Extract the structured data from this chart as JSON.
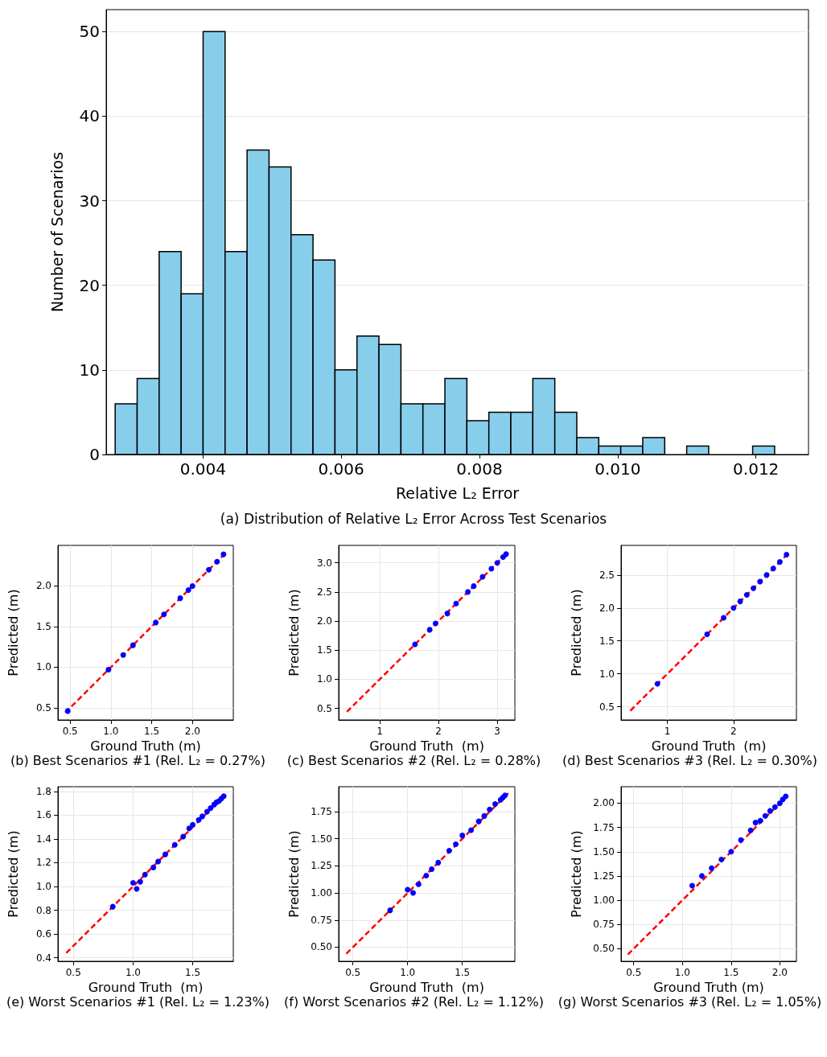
{
  "chart_data": [
    {
      "type": "histogram",
      "title": "(a) Distribution of Relative L₂ Error Across Test Scenarios",
      "xlabel": "Relative L₂ Error",
      "ylabel": "Number of Scenarios",
      "color": "#87ceeb",
      "bins": [
        0.00273,
        0.003048,
        0.003366,
        0.003684,
        0.004002,
        0.00432,
        0.004638,
        0.004956,
        0.005274,
        0.005592,
        0.00591,
        0.006228,
        0.006546,
        0.006864,
        0.007182,
        0.0075,
        0.007818,
        0.008136,
        0.008454,
        0.008772,
        0.00909,
        0.009408,
        0.009726,
        0.010044,
        0.010362,
        0.01068,
        0.010998,
        0.011316,
        0.011634,
        0.011952,
        0.01227
      ],
      "values": [
        6,
        9,
        24,
        19,
        50,
        24,
        36,
        34,
        26,
        23,
        10,
        14,
        13,
        6,
        6,
        9,
        4,
        5,
        5,
        9,
        5,
        2,
        1,
        1,
        2,
        0,
        1,
        0,
        0,
        1
      ],
      "xlim": [
        0.0026,
        0.01276
      ],
      "xticks": [
        0.004,
        0.006,
        0.008,
        {
          "value": 0.01,
          "label": "0.010"
        },
        0.012
      ],
      "ylim": [
        0,
        52.6
      ],
      "yticks": [
        0,
        10,
        20,
        30,
        40,
        50
      ],
      "grid": "y"
    },
    {
      "type": "scatter",
      "title": "(b) Best Scenarios #1 (Rel. L₂ = 0.27%)",
      "xlabel": "Ground Truth (m)",
      "ylabel": "Predicted (m)",
      "grid": true,
      "xlim": [
        0.35,
        2.5
      ],
      "xticks": [
        0.5,
        {
          "value": 1,
          "label": "1.0"
        },
        1.5,
        {
          "value": 2,
          "label": "2.0"
        }
      ],
      "ylim": [
        0.35,
        2.5
      ],
      "yticks": [
        0.5,
        {
          "value": 1,
          "label": "1.0"
        },
        1.5,
        {
          "value": 2,
          "label": "2.0"
        }
      ],
      "series": [
        {
          "type": "scatter",
          "color": "#0000ff",
          "marker": "circle",
          "x": [
            0.47,
            0.97,
            1.15,
            1.27,
            1.55,
            1.65,
            1.85,
            1.95,
            2.0,
            2.2,
            2.3,
            2.38
          ],
          "values": [
            0.46,
            0.97,
            1.15,
            1.27,
            1.55,
            1.65,
            1.85,
            1.95,
            2.0,
            2.2,
            2.3,
            2.39
          ]
        },
        {
          "type": "line",
          "color": "#ff0000",
          "marker": "none",
          "line_style": "dashed",
          "x": [
            0.44,
            2.39
          ],
          "values": [
            0.44,
            2.39
          ]
        }
      ]
    },
    {
      "type": "scatter",
      "title": "(c) Best Scenarios #2 (Rel. L₂ = 0.28%)",
      "xlabel": "Ground Truth  (m)",
      "ylabel": "Predicted (m)",
      "grid": true,
      "xlim": [
        0.3,
        3.3
      ],
      "xticks": [
        1,
        2,
        3
      ],
      "ylim": [
        0.3,
        3.3
      ],
      "yticks": [
        0.5,
        {
          "value": 1,
          "label": "1.0"
        },
        1.5,
        {
          "value": 2,
          "label": "2.0"
        },
        2.5,
        {
          "value": 3,
          "label": "3.0"
        }
      ],
      "series": [
        {
          "type": "scatter",
          "color": "#0000ff",
          "marker": "circle",
          "x": [
            1.6,
            1.85,
            1.95,
            2.15,
            2.3,
            2.5,
            2.6,
            2.75,
            2.9,
            3.0,
            3.1,
            3.15
          ],
          "values": [
            1.6,
            1.85,
            1.96,
            2.13,
            2.3,
            2.5,
            2.6,
            2.76,
            2.9,
            3.0,
            3.1,
            3.15
          ]
        },
        {
          "type": "line",
          "color": "#ff0000",
          "marker": "none",
          "line_style": "dashed",
          "x": [
            0.44,
            3.15
          ],
          "values": [
            0.44,
            3.15
          ]
        }
      ]
    },
    {
      "type": "scatter",
      "title": "(d) Best Scenarios #3 (Rel. L₂ = 0.30%)",
      "xlabel": "Ground Truth  (m)",
      "ylabel": "Predicted (m)",
      "grid": true,
      "xlim": [
        0.3,
        2.95
      ],
      "xticks": [
        1,
        2
      ],
      "ylim": [
        0.3,
        2.95
      ],
      "yticks": [
        0.5,
        {
          "value": 1,
          "label": "1.0"
        },
        1.5,
        {
          "value": 2,
          "label": "2.0"
        },
        2.5
      ],
      "series": [
        {
          "type": "scatter",
          "color": "#0000ff",
          "marker": "circle",
          "x": [
            0.85,
            1.6,
            1.85,
            2.0,
            2.1,
            2.2,
            2.3,
            2.4,
            2.5,
            2.6,
            2.7,
            2.8
          ],
          "values": [
            0.85,
            1.6,
            1.85,
            2.0,
            2.1,
            2.2,
            2.3,
            2.4,
            2.5,
            2.6,
            2.7,
            2.81
          ]
        },
        {
          "type": "line",
          "color": "#ff0000",
          "marker": "none",
          "line_style": "dashed",
          "x": [
            0.44,
            2.82
          ],
          "values": [
            0.44,
            2.82
          ]
        }
      ]
    },
    {
      "type": "scatter",
      "title": "(e) Worst Scenarios #1 (Rel. L₂ = 1.23%)",
      "xlabel": "Ground Truth  (m)",
      "ylabel": "Predicted (m)",
      "grid": true,
      "xlim": [
        0.37,
        1.84
      ],
      "xticks": [
        0.5,
        {
          "value": 1,
          "label": "1.0"
        },
        1.5
      ],
      "ylim": [
        0.37,
        1.84
      ],
      "yticks": [
        0.4,
        0.6,
        0.8,
        {
          "value": 1,
          "label": "1.0"
        },
        1.2,
        1.4,
        1.6,
        1.8
      ],
      "series": [
        {
          "type": "scatter",
          "color": "#0000ff",
          "marker": "circle",
          "x": [
            0.83,
            1.0,
            1.03,
            1.06,
            1.1,
            1.17,
            1.21,
            1.27,
            1.35,
            1.42,
            1.47,
            1.5,
            1.55,
            1.58,
            1.62,
            1.65,
            1.68,
            1.7,
            1.72,
            1.74,
            1.76
          ],
          "values": [
            0.83,
            1.03,
            0.98,
            1.04,
            1.1,
            1.16,
            1.21,
            1.27,
            1.35,
            1.42,
            1.49,
            1.52,
            1.56,
            1.59,
            1.63,
            1.66,
            1.69,
            1.71,
            1.72,
            1.74,
            1.76
          ]
        },
        {
          "type": "line",
          "color": "#ff0000",
          "marker": "none",
          "line_style": "dashed",
          "x": [
            0.44,
            1.77
          ],
          "values": [
            0.44,
            1.77
          ]
        }
      ]
    },
    {
      "type": "scatter",
      "title": "(f) Worst Scenarios #2 (Rel. L₂ = 1.12%)",
      "xlabel": "Ground Truth  (m)",
      "ylabel": "Predicted (m)",
      "grid": true,
      "xlim": [
        0.37,
        1.98
      ],
      "xticks": [
        0.5,
        {
          "value": 1,
          "label": "1.0"
        },
        1.5
      ],
      "ylim": [
        0.37,
        1.98
      ],
      "yticks": [
        {
          "value": 0.5,
          "label": "0.50"
        },
        0.75,
        {
          "value": 1,
          "label": "1.00"
        },
        1.25,
        {
          "value": 1.5,
          "label": "1.50"
        },
        1.75
      ],
      "series": [
        {
          "type": "scatter",
          "color": "#0000ff",
          "marker": "circle",
          "x": [
            0.84,
            1.0,
            1.05,
            1.1,
            1.17,
            1.22,
            1.28,
            1.38,
            1.44,
            1.5,
            1.58,
            1.65,
            1.7,
            1.75,
            1.8,
            1.85,
            1.87,
            1.89
          ],
          "values": [
            0.84,
            1.03,
            1.0,
            1.08,
            1.16,
            1.22,
            1.28,
            1.39,
            1.45,
            1.53,
            1.58,
            1.66,
            1.71,
            1.77,
            1.82,
            1.86,
            1.88,
            1.9
          ]
        },
        {
          "type": "line",
          "color": "#ff0000",
          "marker": "none",
          "line_style": "dashed",
          "x": [
            0.44,
            1.92
          ],
          "values": [
            0.44,
            1.92
          ]
        }
      ]
    },
    {
      "type": "scatter",
      "title": "(g) Worst Scenarios #3 (Rel. L₂ = 1.05%)",
      "xlabel": "Ground Truth (m)",
      "ylabel": "Predicted (m)",
      "grid": true,
      "xlim": [
        0.37,
        2.17
      ],
      "xticks": [
        0.5,
        {
          "value": 1,
          "label": "1.0"
        },
        1.5,
        {
          "value": 2,
          "label": "2.0"
        }
      ],
      "ylim": [
        0.37,
        2.17
      ],
      "yticks": [
        {
          "value": 0.5,
          "label": "0.50"
        },
        0.75,
        {
          "value": 1,
          "label": "1.00"
        },
        1.25,
        {
          "value": 1.5,
          "label": "1.50"
        },
        1.75,
        {
          "value": 2,
          "label": "2.00"
        }
      ],
      "series": [
        {
          "type": "scatter",
          "color": "#0000ff",
          "marker": "circle",
          "x": [
            1.1,
            1.2,
            1.3,
            1.4,
            1.5,
            1.6,
            1.7,
            1.75,
            1.8,
            1.85,
            1.9,
            1.95,
            2.0,
            2.03,
            2.06
          ],
          "values": [
            1.15,
            1.25,
            1.33,
            1.42,
            1.5,
            1.62,
            1.72,
            1.8,
            1.82,
            1.87,
            1.92,
            1.96,
            2.0,
            2.04,
            2.07
          ]
        },
        {
          "type": "line",
          "color": "#ff0000",
          "marker": "none",
          "line_style": "dashed",
          "x": [
            0.44,
            2.08
          ],
          "values": [
            0.44,
            2.08
          ]
        }
      ]
    }
  ]
}
